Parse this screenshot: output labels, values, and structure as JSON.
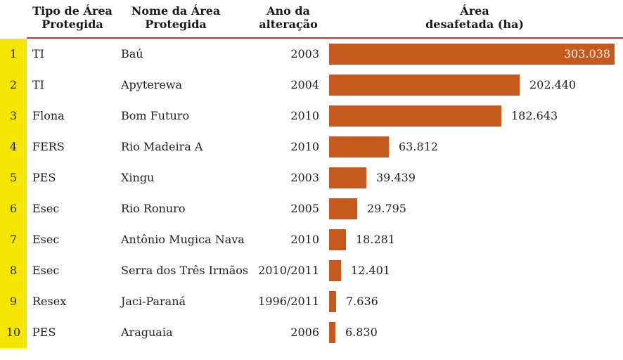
{
  "header": {
    "type_label": "Tipo de Área\nProtegida",
    "name_label": "Nome da Área\nProtegida",
    "year_label": "Ano da\nalteração",
    "area_label": "Área\ndesafetada (ha)"
  },
  "colors": {
    "bar": "#c65a1e",
    "index_band": "#f5e600",
    "rule": "#c0392b"
  },
  "chart_data": {
    "type": "bar",
    "orientation": "horizontal",
    "columns": [
      "Tipo de Área Protegida",
      "Nome da Área Protegida",
      "Ano da alteração",
      "Área desafetada (ha)"
    ],
    "rows": [
      {
        "index": "1",
        "type": "TI",
        "name": "Baú",
        "year": "2003",
        "value": 303038,
        "value_label": "303.038"
      },
      {
        "index": "2",
        "type": "TI",
        "name": "Apyterewa",
        "year": "2004",
        "value": 202440,
        "value_label": "202.440"
      },
      {
        "index": "3",
        "type": "Flona",
        "name": "Bom Futuro",
        "year": "2010",
        "value": 182643,
        "value_label": "182.643"
      },
      {
        "index": "4",
        "type": "FERS",
        "name": "Rio Madeira A",
        "year": "2010",
        "value": 63812,
        "value_label": "63.812"
      },
      {
        "index": "5",
        "type": "PES",
        "name": "Xingu",
        "year": "2003",
        "value": 39439,
        "value_label": "39.439"
      },
      {
        "index": "6",
        "type": "Esec",
        "name": "Rio Ronuro",
        "year": "2005",
        "value": 29795,
        "value_label": "29.795"
      },
      {
        "index": "7",
        "type": "Esec",
        "name": "Antônio Mugica Nava",
        "year": "2010",
        "value": 18281,
        "value_label": "18.281"
      },
      {
        "index": "8",
        "type": "Esec",
        "name": "Serra dos Três Irmãos",
        "year": "2010/2011",
        "value": 12401,
        "value_label": "12.401"
      },
      {
        "index": "9",
        "type": "Resex",
        "name": "Jaci-Paraná",
        "year": "1996/2011",
        "value": 7636,
        "value_label": "7.636"
      },
      {
        "index": "10",
        "type": "PES",
        "name": "Araguaia",
        "year": "2006",
        "value": 6830,
        "value_label": "6.830"
      }
    ]
  }
}
